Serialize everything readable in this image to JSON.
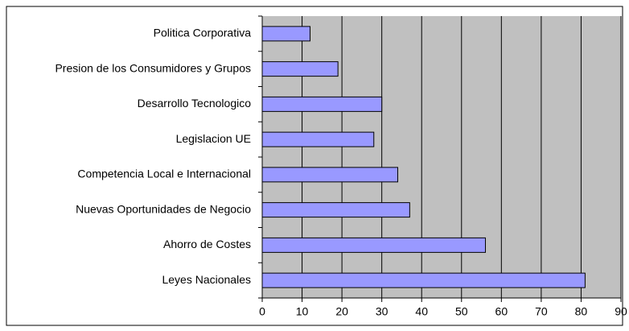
{
  "chart_data": {
    "type": "bar",
    "orientation": "horizontal",
    "categories": [
      "Politica Corporativa",
      "Presion de los Consumidores y Grupos",
      "Desarrollo Tecnologico",
      "Legislacion UE",
      "Competencia Local e Internacional",
      "Nuevas Oportunidades de Negocio",
      "Ahorro de Costes",
      "Leyes Nacionales"
    ],
    "values": [
      12,
      19,
      30,
      28,
      34,
      37,
      56,
      81
    ],
    "color": "#9999ff",
    "xlim": [
      0,
      90
    ],
    "xticks": [
      0,
      10,
      20,
      30,
      40,
      50,
      60,
      70,
      80,
      90
    ],
    "grid": true
  }
}
